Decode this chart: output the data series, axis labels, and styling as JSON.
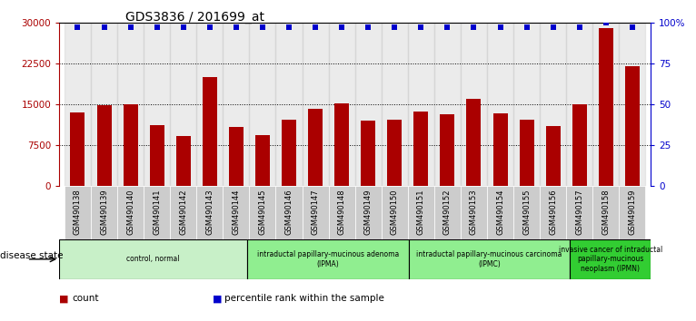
{
  "title": "GDS3836 / 201699_at",
  "samples": [
    "GSM490138",
    "GSM490139",
    "GSM490140",
    "GSM490141",
    "GSM490142",
    "GSM490143",
    "GSM490144",
    "GSM490145",
    "GSM490146",
    "GSM490147",
    "GSM490148",
    "GSM490149",
    "GSM490150",
    "GSM490151",
    "GSM490152",
    "GSM490153",
    "GSM490154",
    "GSM490155",
    "GSM490156",
    "GSM490157",
    "GSM490158",
    "GSM490159"
  ],
  "counts": [
    13500,
    14800,
    15000,
    11200,
    9200,
    20000,
    10800,
    9300,
    12200,
    14200,
    15200,
    12000,
    12200,
    13600,
    13200,
    16000,
    13400,
    12200,
    11000,
    15000,
    29000,
    22000
  ],
  "percentile_values": [
    97,
    97,
    97,
    97,
    97,
    97,
    97,
    97,
    97,
    97,
    97,
    97,
    97,
    97,
    97,
    97,
    97,
    97,
    97,
    97,
    100,
    97
  ],
  "ylim_left": [
    0,
    30000
  ],
  "ylim_right": [
    0,
    100
  ],
  "yticks_left": [
    0,
    7500,
    15000,
    22500,
    30000
  ],
  "yticks_right": [
    0,
    25,
    50,
    75,
    100
  ],
  "bar_color": "#aa0000",
  "percentile_color": "#0000cc",
  "plot_bg": "#ffffff",
  "tick_bg": "#d0d0d0",
  "groups": [
    {
      "label": "control, normal",
      "start": 0,
      "end": 7,
      "color": "#c8f0c8"
    },
    {
      "label": "intraductal papillary-mucinous adenoma\n(IPMA)",
      "start": 7,
      "end": 13,
      "color": "#90ee90"
    },
    {
      "label": "intraductal papillary-mucinous carcinoma\n(IPMC)",
      "start": 13,
      "end": 19,
      "color": "#90ee90"
    },
    {
      "label": "invasive cancer of intraductal\npapillary-mucinous\nneoplasm (IPMN)",
      "start": 19,
      "end": 22,
      "color": "#32cd32"
    }
  ],
  "legend_items": [
    {
      "label": "count",
      "color": "#aa0000"
    },
    {
      "label": "percentile rank within the sample",
      "color": "#0000cc"
    }
  ],
  "disease_state_label": "disease state"
}
